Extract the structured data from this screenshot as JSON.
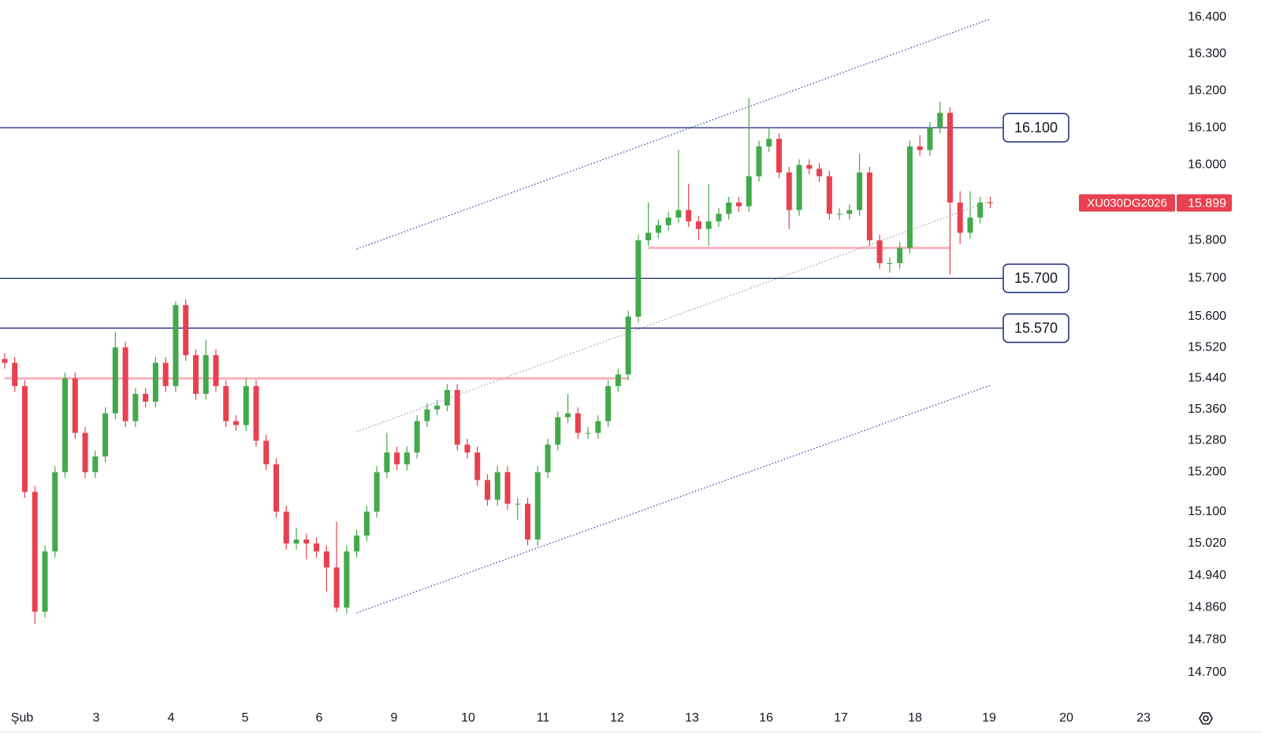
{
  "chart_data": {
    "type": "candlestick",
    "symbol": "XU030DG2026",
    "last_price": {
      "value": 15899,
      "label": "15.899"
    },
    "up_color": "#43a94b",
    "down_color": "#e8404f",
    "ylim": [
      14630,
      16447
    ],
    "log_scale": true,
    "yticks": [
      {
        "value": 16400,
        "label": "16.400"
      },
      {
        "value": 16300,
        "label": "16.300"
      },
      {
        "value": 16200,
        "label": "16.200"
      },
      {
        "value": 16100,
        "label": "16.100"
      },
      {
        "value": 16000,
        "label": "16.000"
      },
      {
        "value": 15800,
        "label": "15.800"
      },
      {
        "value": 15700,
        "label": "15.700"
      },
      {
        "value": 15600,
        "label": "15.600"
      },
      {
        "value": 15520,
        "label": "15.520"
      },
      {
        "value": 15440,
        "label": "15.440"
      },
      {
        "value": 15360,
        "label": "15.360"
      },
      {
        "value": 15280,
        "label": "15.280"
      },
      {
        "value": 15200,
        "label": "15.200"
      },
      {
        "value": 15100,
        "label": "15.100"
      },
      {
        "value": 15020,
        "label": "15.020"
      },
      {
        "value": 14940,
        "label": "14.940"
      },
      {
        "value": 14860,
        "label": "14.860"
      },
      {
        "value": 14780,
        "label": "14.780"
      },
      {
        "value": 14700,
        "label": "14.700"
      }
    ],
    "xticks": [
      "Şub",
      "3",
      "4",
      "5",
      "6",
      "9",
      "10",
      "11",
      "12",
      "13",
      "16",
      "17",
      "18",
      "19",
      "20",
      "23"
    ],
    "open": [
      15490,
      15480,
      15420,
      15150,
      14850,
      15000,
      15200,
      15440,
      15300,
      15200,
      15240,
      15350,
      15520,
      15330,
      15400,
      15380,
      15480,
      15420,
      15630,
      15500,
      15400,
      15500,
      15420,
      15330,
      15320,
      15420,
      15280,
      15220,
      15100,
      15020,
      15030,
      15020,
      15000,
      14960,
      14860,
      15000,
      15040,
      15100,
      15200,
      15250,
      15220,
      15250,
      15330,
      15360,
      15370,
      15410,
      15270,
      15250,
      15180,
      15130,
      15200,
      15120,
      15120,
      15030,
      15200,
      15270,
      15340,
      15350,
      15300,
      15300,
      15330,
      15420,
      15450,
      15600,
      15800,
      15820,
      15840,
      15860,
      15880,
      15850,
      15830,
      15850,
      15870,
      15900,
      15890,
      15970,
      16050,
      16070,
      15980,
      15880,
      16000,
      15990,
      15970,
      15870,
      15870,
      15880,
      15980,
      15800,
      15740,
      15740,
      15780,
      16050,
      16040,
      16100,
      16140,
      15900,
      15820,
      15860,
      15900
    ],
    "high": [
      15505,
      15495,
      15435,
      15165,
      15015,
      15215,
      15455,
      15455,
      15315,
      15255,
      15365,
      15560,
      15535,
      15415,
      15415,
      15495,
      15495,
      15640,
      15645,
      15515,
      15540,
      15515,
      15435,
      15345,
      15440,
      15435,
      15295,
      15235,
      15115,
      15060,
      15045,
      15035,
      15015,
      15075,
      15015,
      15055,
      15115,
      15215,
      15300,
      15265,
      15265,
      15345,
      15375,
      15385,
      15425,
      15425,
      15285,
      15265,
      15195,
      15215,
      15215,
      15135,
      15135,
      15215,
      15285,
      15355,
      15400,
      15365,
      15315,
      15345,
      15435,
      15465,
      15615,
      15815,
      15900,
      15855,
      15875,
      16040,
      15950,
      15865,
      15950,
      15885,
      15915,
      15915,
      16180,
      16065,
      16100,
      16085,
      15995,
      16015,
      16015,
      16005,
      15985,
      15885,
      15895,
      16030,
      15995,
      15815,
      15755,
      15795,
      16065,
      16080,
      16115,
      16170,
      16155,
      15930,
      15930,
      15915,
      15915
    ],
    "low": [
      15465,
      15405,
      15135,
      14820,
      14835,
      14985,
      15185,
      15285,
      15185,
      15185,
      15225,
      15335,
      15315,
      15315,
      15365,
      15365,
      15405,
      15405,
      15485,
      15385,
      15385,
      15405,
      15315,
      15305,
      15305,
      15265,
      15205,
      15085,
      15005,
      15005,
      14980,
      14985,
      14900,
      14850,
      14845,
      14985,
      15025,
      15085,
      15185,
      15205,
      15205,
      15235,
      15315,
      15345,
      15355,
      15255,
      15235,
      15165,
      15115,
      15115,
      15105,
      15080,
      15015,
      15015,
      15185,
      15255,
      15325,
      15285,
      15285,
      15285,
      15315,
      15405,
      15435,
      15585,
      15785,
      15805,
      15825,
      15845,
      15835,
      15800,
      15785,
      15835,
      15855,
      15875,
      15875,
      15955,
      16035,
      15965,
      15830,
      15865,
      15975,
      15955,
      15855,
      15855,
      15855,
      15865,
      15785,
      15725,
      15715,
      15725,
      15765,
      16025,
      16025,
      16085,
      15710,
      15790,
      15805,
      15845,
      15885
    ],
    "close": [
      15480,
      15420,
      15150,
      14850,
      15000,
      15200,
      15440,
      15300,
      15200,
      15240,
      15350,
      15520,
      15330,
      15400,
      15380,
      15480,
      15420,
      15630,
      15500,
      15400,
      15500,
      15420,
      15330,
      15320,
      15420,
      15280,
      15220,
      15100,
      15020,
      15030,
      15020,
      15000,
      14960,
      14860,
      15000,
      15040,
      15100,
      15200,
      15250,
      15220,
      15250,
      15330,
      15360,
      15370,
      15410,
      15270,
      15250,
      15180,
      15130,
      15200,
      15120,
      15120,
      15030,
      15200,
      15270,
      15340,
      15350,
      15300,
      15300,
      15330,
      15420,
      15450,
      15600,
      15800,
      15820,
      15840,
      15860,
      15880,
      15850,
      15830,
      15850,
      15870,
      15900,
      15890,
      15970,
      16050,
      16070,
      15980,
      15880,
      16000,
      15990,
      15970,
      15870,
      15870,
      15880,
      15980,
      15800,
      15740,
      15740,
      15780,
      16050,
      16040,
      16100,
      16140,
      15900,
      15820,
      15860,
      15900,
      15899
    ],
    "levels": [
      {
        "value": 16100,
        "label": "16.100"
      },
      {
        "value": 15700,
        "label": "15.700"
      },
      {
        "value": 15570,
        "label": "15.570"
      }
    ],
    "level_color": "#1a237e",
    "zones": [
      {
        "value": 15440,
        "x": [
          0,
          62
        ],
        "color": "#f7b3ba"
      },
      {
        "value": 15780,
        "x": [
          64,
          94
        ],
        "color": "#f7b3ba"
      }
    ],
    "trendlines": [
      {
        "x": [
          35,
          98
        ],
        "y": [
          15777,
          16395
        ],
        "color": "#3949ab"
      },
      {
        "x": [
          35,
          98
        ],
        "y": [
          15303,
          15904
        ],
        "color": "#9e9eb8"
      },
      {
        "x": [
          35,
          98
        ],
        "y": [
          14847,
          15422
        ],
        "color": "#3949ab"
      }
    ]
  }
}
